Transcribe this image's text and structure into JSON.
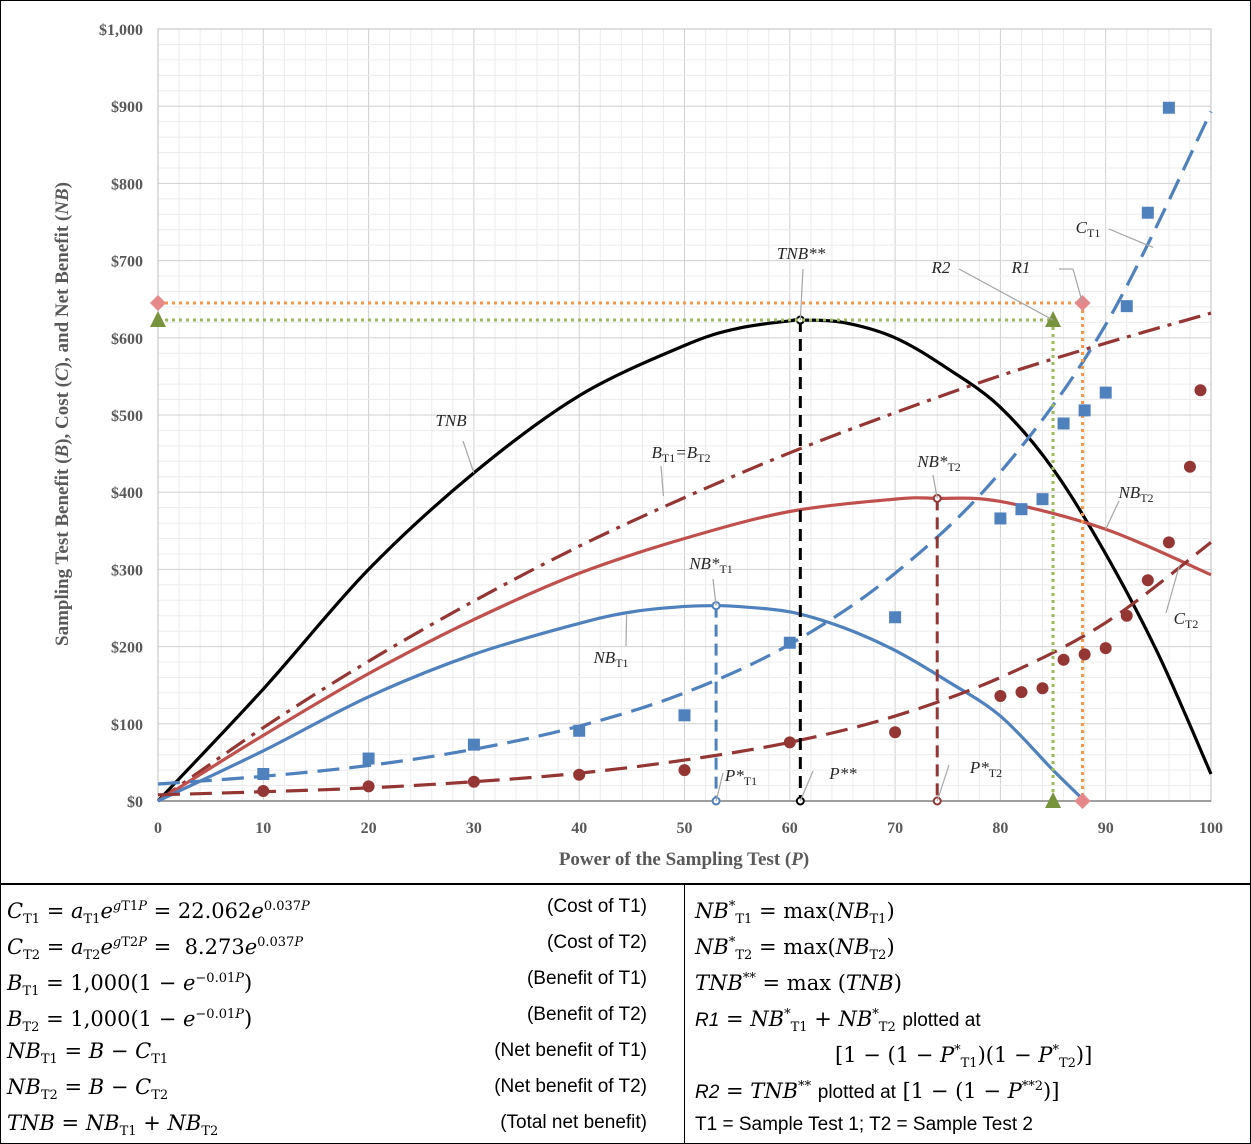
{
  "chart_data": {
    "type": "line",
    "xlabel": "Power of the Sampling Test (P)",
    "ylabel": "Sampling Test Benefit (B), Cost (C), and Net Benefit (NB)",
    "xlim": [
      0,
      100
    ],
    "ylim": [
      0,
      1000
    ],
    "x_ticks": [
      "0",
      "10",
      "20",
      "30",
      "40",
      "50",
      "60",
      "70",
      "80",
      "90",
      "100"
    ],
    "y_ticks": [
      "$0",
      "$100",
      "$200",
      "$300",
      "$400",
      "$500",
      "$600",
      "$700",
      "$800",
      "$900",
      "$1,000"
    ],
    "grid": true,
    "series": [
      {
        "name": "TNB",
        "style": "solid",
        "color": "#000000",
        "x": [
          0,
          10,
          20,
          30,
          40,
          50,
          55,
          60,
          61,
          65,
          70,
          75,
          80,
          85,
          90,
          95,
          100
        ],
        "values": [
          0,
          145,
          300,
          425,
          525,
          590,
          612,
          622,
          623,
          620,
          600,
          560,
          510,
          430,
          320,
          190,
          35
        ]
      },
      {
        "name": "B_T1=B_T2",
        "style": "dash-dot",
        "color": "#943634",
        "x": [
          0,
          10,
          20,
          30,
          40,
          50,
          60,
          70,
          80,
          90,
          100
        ],
        "values": [
          0,
          95,
          181,
          259,
          330,
          393,
          451,
          503,
          551,
          593,
          632
        ]
      },
      {
        "name": "NB_T2",
        "style": "solid",
        "color": "#c0504d",
        "x": [
          0,
          10,
          20,
          30,
          40,
          50,
          60,
          70,
          74,
          80,
          90,
          100
        ],
        "values": [
          0,
          85,
          165,
          235,
          295,
          340,
          375,
          391,
          392,
          388,
          352,
          293
        ]
      },
      {
        "name": "NB_T1",
        "style": "solid",
        "color": "#4f81bd",
        "x": [
          0,
          10,
          20,
          30,
          40,
          45,
          50,
          53,
          55,
          60,
          65,
          70,
          75,
          80,
          85,
          88
        ],
        "values": [
          0,
          65,
          135,
          190,
          230,
          245,
          252,
          253,
          252,
          245,
          225,
          195,
          155,
          110,
          40,
          0
        ]
      },
      {
        "name": "C_T1",
        "style": "dash",
        "color": "#4f81bd",
        "x": [
          0,
          10,
          20,
          30,
          40,
          50,
          60,
          70,
          80,
          90,
          100
        ],
        "values": [
          22,
          32,
          46,
          67,
          97,
          140,
          203,
          295,
          426,
          617,
          893
        ]
      },
      {
        "name": "C_T2",
        "style": "dash",
        "color": "#943634",
        "x": [
          0,
          10,
          20,
          30,
          40,
          50,
          60,
          70,
          80,
          90,
          100
        ],
        "values": [
          8,
          12,
          17,
          25,
          36,
          53,
          76,
          110,
          160,
          231,
          335
        ]
      }
    ],
    "scatter": [
      {
        "name": "T1 cost points",
        "marker": "square",
        "color": "#4f81bd",
        "x": [
          10,
          20,
          30,
          40,
          50,
          60,
          70,
          80,
          82,
          84,
          86,
          88,
          90,
          92,
          94,
          96
        ],
        "values": [
          35,
          55,
          73,
          91,
          111,
          205,
          238,
          366,
          378,
          391,
          489,
          506,
          529,
          641,
          762,
          898
        ]
      },
      {
        "name": "T2 cost points",
        "marker": "circle",
        "color": "#943634",
        "x": [
          10,
          20,
          30,
          40,
          50,
          60,
          70,
          80,
          82,
          84,
          86,
          88,
          90,
          92,
          94,
          96,
          98,
          99
        ],
        "values": [
          13,
          19,
          25,
          34,
          40,
          76,
          89,
          136,
          141,
          146,
          183,
          190,
          198,
          240,
          286,
          335,
          433,
          532
        ]
      }
    ],
    "drop_lines": [
      {
        "x": 53,
        "y": 253,
        "color": "#4f81bd"
      },
      {
        "x": 61,
        "y": 623,
        "color": "#000000"
      },
      {
        "x": 74,
        "y": 392,
        "color": "#943634"
      }
    ],
    "reference_lines": [
      {
        "label": "R1",
        "x": 87.8,
        "y": 645,
        "color": "#f79646",
        "marker": "diamond",
        "marker_color": "#e6888a"
      },
      {
        "label": "R2",
        "x": 85,
        "y": 623,
        "color": "#9bbb59",
        "marker": "triangle",
        "marker_color": "#77933c"
      }
    ],
    "annotations": {
      "TNB": "TNB",
      "B": "BT1=BT2",
      "NBT1": "NBT1",
      "NBT2": "NBT2",
      "CT1": "CT1",
      "CT2": "CT2",
      "NBstarT1": "NB*T1",
      "NBstarT2": "NB*T2",
      "TNBstarstar": "TNB**",
      "R1": "R1",
      "R2": "R2",
      "PstarT1": "P*T1",
      "PstarT2": "P*T2",
      "Pstarstar": "P**"
    }
  },
  "formulas": {
    "cost_t1_desc": "(Cost of T1)",
    "cost_t2_desc": "(Cost of T2)",
    "benefit_t1_desc": "(Benefit of T1)",
    "benefit_t2_desc": "(Benefit of T2)",
    "nb_t1_desc": "(Net benefit of T1)",
    "nb_t2_desc": "(Net benefit of T2)",
    "tnb_desc": "(Total net benefit)",
    "cost_t1_value": "22.062",
    "cost_t2_value": "8.273",
    "exponent": "0.037",
    "benefit_scale": "1,000",
    "benefit_rate": "−0.01",
    "r1_text": "plotted at",
    "r2_text": "plotted at",
    "legend_note": "T1 = Sample Test 1; T2 = Sample Test 2"
  }
}
